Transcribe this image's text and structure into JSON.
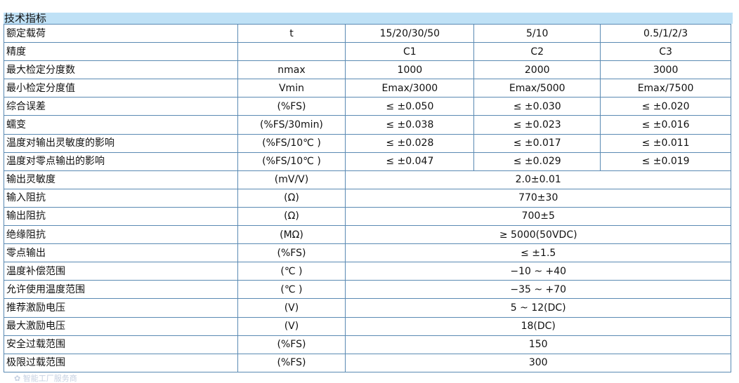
{
  "title": "技术指标",
  "rows": [
    [
      "额定载荷",
      "t",
      "15/20/30/50",
      "5/10",
      "0.5/1/2/3"
    ],
    [
      "精度",
      "",
      "C1",
      "C2",
      "C3"
    ],
    [
      "最大检定分度数",
      "nmax",
      "1000",
      "2000",
      "3000"
    ],
    [
      "最小检定分度值",
      "Vmin",
      "Emax/3000",
      "Emax/5000",
      "Emax/7500"
    ],
    [
      "综合误差",
      "(%FS)",
      "≤ ±0.050",
      "≤ ±0.030",
      "≤ ±0.020"
    ],
    [
      "蠕变",
      "(%FS/30min)",
      "≤ ±0.038",
      "≤ ±0.023",
      "≤ ±0.016"
    ],
    [
      "温度对输出灵敏度的影响",
      "(%FS/10℃ )",
      "≤ ±0.028",
      "≤ ±0.017",
      "≤ ±0.011"
    ],
    [
      "温度对零点输出的影响",
      "(%FS/10℃ )",
      "≤ ±0.047",
      "≤ ±0.029",
      "≤ ±0.019"
    ],
    [
      "输出灵敏度",
      "(mV/V)",
      "2.0±0.01"
    ],
    [
      "输入阻抗",
      "(Ω)",
      "770±30"
    ],
    [
      "输出阻抗",
      "(Ω)",
      "700±5"
    ],
    [
      "绝缘阻抗",
      "(MΩ)",
      "≥ 5000(50VDC)"
    ],
    [
      "零点输出",
      "(%FS)",
      "≤ ±1.5"
    ],
    [
      "温度补偿范围",
      "(℃ )",
      "−10 ~ +40"
    ],
    [
      "允许使用温度范围",
      "(℃ )",
      "−35 ~ +70"
    ],
    [
      "推荐激励电压",
      "(V)",
      "5 ~ 12(DC)"
    ],
    [
      "最大激励电压",
      "(V)",
      "18(DC)"
    ],
    [
      "安全过载范围",
      "(%FS)",
      "150"
    ],
    [
      "极限过载范围",
      "(%FS)",
      "300"
    ]
  ],
  "watermark": "智能工厂服务商"
}
